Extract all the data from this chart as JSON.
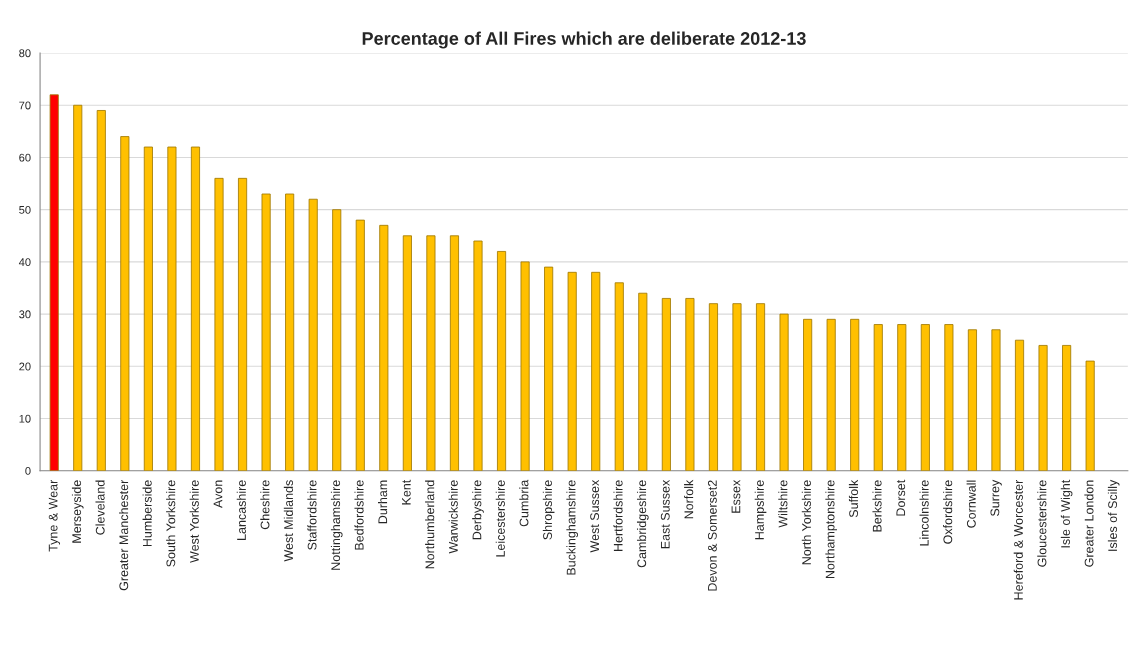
{
  "chart_data": {
    "type": "bar",
    "title": "Percentage of All Fires which are deliberate 2012-13",
    "categories": [
      "Tyne & Wear",
      "Merseyside",
      "Cleveland",
      "Greater Manchester",
      "Humberside",
      "South Yorkshire",
      "West Yorkshire",
      "Avon",
      "Lancashire",
      "Cheshire",
      "West Midlands",
      "Staffordshire",
      "Nottinghamshire",
      "Bedfordshire",
      "Durham",
      "Kent",
      "Northumberland",
      "Warwickshire",
      "Derbyshire",
      "Leicestershire",
      "Cumbria",
      "Shropshire",
      "Buckinghamshire",
      "West Sussex",
      "Hertfordshire",
      "Cambridgeshire",
      "East Sussex",
      "Norfolk",
      "Devon & Somerset2",
      "Essex",
      "Hampshire",
      "Wiltshire",
      "North Yorkshire",
      "Northamptonshire",
      "Suffolk",
      "Berkshire",
      "Dorset",
      "Lincolnshire",
      "Oxfordshire",
      "Cornwall",
      "Surrey",
      "Hereford & Worcester",
      "Gloucestershire",
      "Isle of Wight",
      "Greater London",
      "Isles of Scilly"
    ],
    "values": [
      72,
      70,
      69,
      64,
      62,
      62,
      62,
      56,
      56,
      53,
      53,
      52,
      50,
      48,
      47,
      45,
      45,
      45,
      44,
      42,
      40,
      39,
      38,
      38,
      36,
      34,
      33,
      33,
      32,
      32,
      32,
      30,
      29,
      29,
      29,
      28,
      28,
      28,
      28,
      27,
      27,
      25,
      24,
      24,
      21,
      null
    ],
    "colors": [
      "#ff0000",
      "#ffc000",
      "#ffc000",
      "#ffc000",
      "#ffc000",
      "#ffc000",
      "#ffc000",
      "#ffc000",
      "#ffc000",
      "#ffc000",
      "#ffc000",
      "#ffc000",
      "#ffc000",
      "#ffc000",
      "#ffc000",
      "#ffc000",
      "#ffc000",
      "#ffc000",
      "#ffc000",
      "#ffc000",
      "#ffc000",
      "#ffc000",
      "#ffc000",
      "#ffc000",
      "#ffc000",
      "#ffc000",
      "#ffc000",
      "#ffc000",
      "#ffc000",
      "#ffc000",
      "#ffc000",
      "#ffc000",
      "#ffc000",
      "#ffc000",
      "#ffc000",
      "#ffc000",
      "#ffc000",
      "#ffc000",
      "#ffc000",
      "#ffc000",
      "#ffc000",
      "#ffc000",
      "#ffc000",
      "#ffc000",
      "#ffc000",
      null
    ],
    "ylim": [
      0,
      80
    ],
    "yticks": [
      0,
      10,
      20,
      30,
      40,
      50,
      60,
      70,
      80
    ],
    "grid": "y",
    "legend": false
  }
}
